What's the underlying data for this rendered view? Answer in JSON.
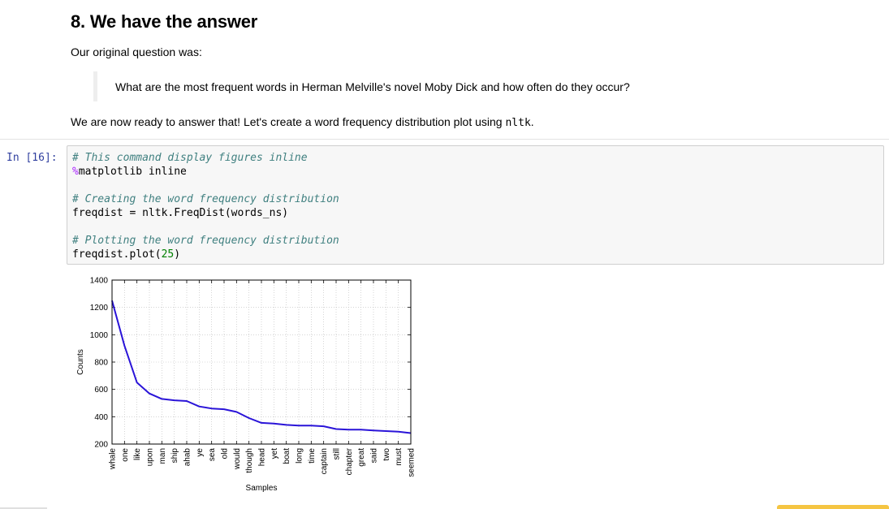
{
  "markdown": {
    "heading": "8. We have the answer",
    "intro": "Our original question was:",
    "quote": "What are the most frequent words in Herman Melville's novel Moby Dick and how often do they occur?",
    "ready_text": "We are now ready to answer that! Let's create a word frequency distribution plot using ",
    "ready_code": "nltk",
    "ready_end": "."
  },
  "code_cell": {
    "prompt": "In [16]:",
    "lines": [
      [
        {
          "t": "# This command display figures inline",
          "c": "cm"
        }
      ],
      [
        {
          "t": "%",
          "c": "magic"
        },
        {
          "t": "matplotlib inline",
          "c": ""
        }
      ],
      [
        {
          "t": "",
          "c": ""
        }
      ],
      [
        {
          "t": "# Creating the word frequency distribution",
          "c": "cm"
        }
      ],
      [
        {
          "t": "freqdist = nltk.FreqDist(words_ns)",
          "c": ""
        }
      ],
      [
        {
          "t": "",
          "c": ""
        }
      ],
      [
        {
          "t": "# Plotting the word frequency distribution",
          "c": "cm"
        }
      ],
      [
        {
          "t": "freqdist.plot(",
          "c": ""
        },
        {
          "t": "25",
          "c": "num"
        },
        {
          "t": ")",
          "c": ""
        }
      ]
    ]
  },
  "chart_data": {
    "type": "line",
    "title": "",
    "xlabel": "Samples",
    "ylabel": "Counts",
    "ylim": [
      200,
      1400
    ],
    "yticks": [
      200,
      400,
      600,
      800,
      1000,
      1200,
      1400
    ],
    "grid": true,
    "line_color": "#2a14d8",
    "categories": [
      "whale",
      "one",
      "like",
      "upon",
      "man",
      "ship",
      "ahab",
      "ye",
      "sea",
      "old",
      "would",
      "though",
      "head",
      "yet",
      "boat",
      "long",
      "time",
      "captain",
      "still",
      "chapter",
      "great",
      "said",
      "two",
      "must",
      "seemed"
    ],
    "values": [
      1250,
      920,
      650,
      570,
      530,
      520,
      515,
      475,
      460,
      455,
      435,
      390,
      355,
      350,
      340,
      335,
      335,
      330,
      310,
      305,
      305,
      300,
      295,
      290,
      280
    ]
  }
}
